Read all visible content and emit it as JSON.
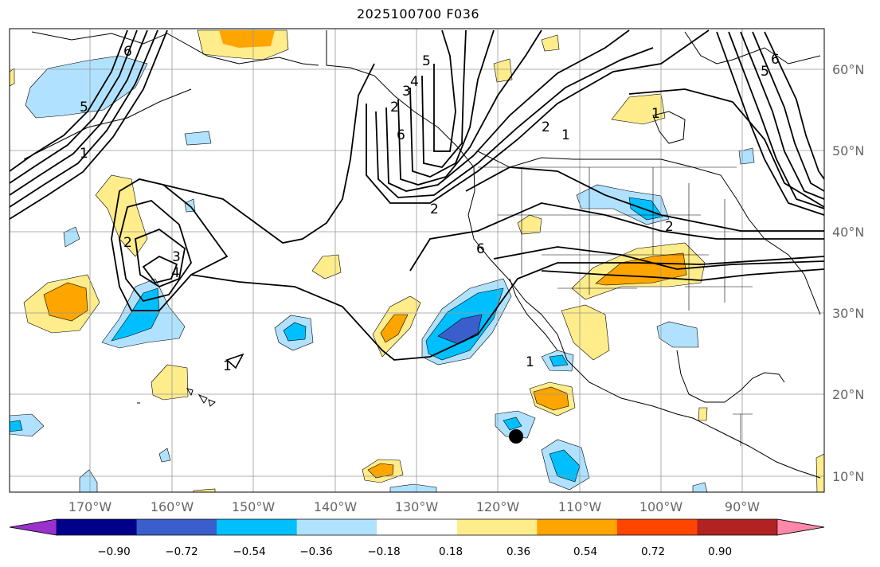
{
  "title": "2025100700 F036",
  "lat_labels": [
    "60°N",
    "50°N",
    "40°N",
    "30°N",
    "20°N",
    "10°N"
  ],
  "lon_labels": [
    "170°W",
    "160°W",
    "150°W",
    "140°W",
    "130°W",
    "120°W",
    "110°W",
    "100°W",
    "90°W"
  ],
  "colorbar": {
    "colors": [
      "#9932CC",
      "#00008B",
      "#3A5FCD",
      "#00BFFF",
      "#B0E2FF",
      "#FFFFFF",
      "#FFEC8B",
      "#FFA500",
      "#FF4500",
      "#B22222",
      "#FF88AA"
    ],
    "tick_labels": [
      "−0.90",
      "−0.72",
      "−0.54",
      "−0.36",
      "−0.18",
      "0.18",
      "0.36",
      "0.54",
      "0.72",
      "0.90"
    ]
  },
  "contour_labels": [
    "1",
    "2",
    "3",
    "4",
    "5",
    "6",
    "1",
    "2",
    "1",
    "2",
    "3",
    "4",
    "5",
    "6",
    "5",
    "6",
    "1",
    "2",
    "6",
    "1",
    "2"
  ],
  "marker": "storm-center-dot"
}
